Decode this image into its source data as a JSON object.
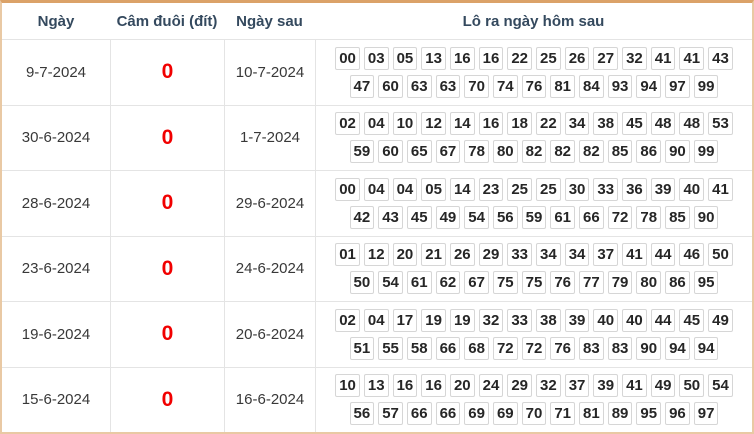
{
  "colors": {
    "outer_border_tan": "#dba268",
    "grid_line_gray": "#e4e4e4",
    "header_text_navy": "#34495e",
    "highlight_red": "#f10000",
    "number_text": "#262626",
    "number_box_border": "#d6d6d6"
  },
  "table": {
    "headers": [
      "Ngày",
      "Câm đuôi (đít)",
      "Ngày sau",
      "Lô ra ngày hôm sau"
    ],
    "rows": [
      {
        "date": "9-7-2024",
        "cam_duoi": "0",
        "next_date": "10-7-2024",
        "lo_line1": [
          "00",
          "03",
          "05",
          "13",
          "16",
          "16",
          "22",
          "25",
          "26",
          "27",
          "32",
          "41",
          "41",
          "43"
        ],
        "lo_line2": [
          "47",
          "60",
          "63",
          "63",
          "70",
          "74",
          "76",
          "81",
          "84",
          "93",
          "94",
          "97",
          "99"
        ]
      },
      {
        "date": "30-6-2024",
        "cam_duoi": "0",
        "next_date": "1-7-2024",
        "lo_line1": [
          "02",
          "04",
          "10",
          "12",
          "14",
          "16",
          "18",
          "22",
          "34",
          "38",
          "45",
          "48",
          "48",
          "53"
        ],
        "lo_line2": [
          "59",
          "60",
          "65",
          "67",
          "78",
          "80",
          "82",
          "82",
          "82",
          "85",
          "86",
          "90",
          "99"
        ]
      },
      {
        "date": "28-6-2024",
        "cam_duoi": "0",
        "next_date": "29-6-2024",
        "lo_line1": [
          "00",
          "04",
          "04",
          "05",
          "14",
          "23",
          "25",
          "25",
          "30",
          "33",
          "36",
          "39",
          "40",
          "41"
        ],
        "lo_line2": [
          "42",
          "43",
          "45",
          "49",
          "54",
          "56",
          "59",
          "61",
          "66",
          "72",
          "78",
          "85",
          "90"
        ]
      },
      {
        "date": "23-6-2024",
        "cam_duoi": "0",
        "next_date": "24-6-2024",
        "lo_line1": [
          "01",
          "12",
          "20",
          "21",
          "26",
          "29",
          "33",
          "34",
          "34",
          "37",
          "41",
          "44",
          "46",
          "50"
        ],
        "lo_line2": [
          "50",
          "54",
          "61",
          "62",
          "67",
          "75",
          "75",
          "76",
          "77",
          "79",
          "80",
          "86",
          "95"
        ]
      },
      {
        "date": "19-6-2024",
        "cam_duoi": "0",
        "next_date": "20-6-2024",
        "lo_line1": [
          "02",
          "04",
          "17",
          "19",
          "19",
          "32",
          "33",
          "38",
          "39",
          "40",
          "40",
          "44",
          "45",
          "49"
        ],
        "lo_line2": [
          "51",
          "55",
          "58",
          "66",
          "68",
          "72",
          "72",
          "76",
          "83",
          "83",
          "90",
          "94",
          "94"
        ]
      },
      {
        "date": "15-6-2024",
        "cam_duoi": "0",
        "next_date": "16-6-2024",
        "lo_line1": [
          "10",
          "13",
          "16",
          "16",
          "20",
          "24",
          "29",
          "32",
          "37",
          "39",
          "41",
          "49",
          "50",
          "54"
        ],
        "lo_line2": [
          "56",
          "57",
          "66",
          "66",
          "69",
          "69",
          "70",
          "71",
          "81",
          "89",
          "95",
          "96",
          "97"
        ]
      }
    ]
  }
}
